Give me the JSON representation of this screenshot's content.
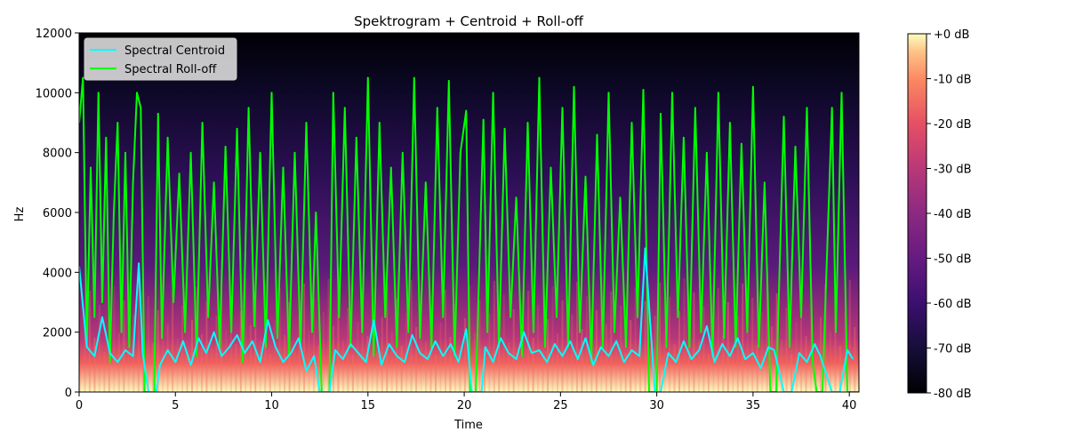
{
  "chart_data": {
    "type": "line",
    "title": "Spektrogram + Centroid + Roll-off",
    "xlabel": "Time",
    "ylabel": "Hz",
    "xlim": [
      0,
      40.5
    ],
    "ylim": [
      0,
      12000
    ],
    "x_ticks": [
      0,
      5,
      10,
      15,
      20,
      25,
      30,
      35,
      40
    ],
    "y_ticks": [
      0,
      2000,
      4000,
      6000,
      8000,
      10000,
      12000
    ],
    "legend_position": "top-left",
    "background": "spectrogram (magma colormap)",
    "series": [
      {
        "name": "Spectral Centroid",
        "color": "#00ffff",
        "x": [
          0,
          0.4,
          0.8,
          1.2,
          1.6,
          2.0,
          2.4,
          2.8,
          3.1,
          3.3,
          3.6,
          4.0,
          4.2,
          4.6,
          5.0,
          5.4,
          5.8,
          6.2,
          6.6,
          7.0,
          7.4,
          7.8,
          8.2,
          8.6,
          9.0,
          9.4,
          9.8,
          10.2,
          10.6,
          11.0,
          11.4,
          11.8,
          12.2,
          12.5,
          13.0,
          13.3,
          13.7,
          14.1,
          14.5,
          14.9,
          15.3,
          15.7,
          16.1,
          16.5,
          16.9,
          17.3,
          17.7,
          18.1,
          18.5,
          18.9,
          19.3,
          19.7,
          20.1,
          20.4,
          20.9,
          21.1,
          21.5,
          21.9,
          22.3,
          22.7,
          23.1,
          23.5,
          23.9,
          24.3,
          24.7,
          25.1,
          25.5,
          25.9,
          26.3,
          26.7,
          27.1,
          27.5,
          27.9,
          28.3,
          28.7,
          29.1,
          29.4,
          29.9,
          30.2,
          30.6,
          31.0,
          31.4,
          31.8,
          32.2,
          32.6,
          33.0,
          33.4,
          33.8,
          34.2,
          34.6,
          35.0,
          35.4,
          35.8,
          36.1,
          36.6,
          37.0,
          37.4,
          37.8,
          38.2,
          38.5,
          39.1,
          39.5,
          39.9,
          40.2
        ],
        "y": [
          4200,
          1500,
          1200,
          2500,
          1300,
          1000,
          1400,
          1200,
          4300,
          1300,
          0,
          0,
          900,
          1400,
          1000,
          1700,
          900,
          1800,
          1300,
          2000,
          1200,
          1500,
          1900,
          1300,
          1700,
          1000,
          2400,
          1500,
          1000,
          1300,
          1800,
          700,
          1200,
          0,
          0,
          1400,
          1100,
          1600,
          1300,
          1000,
          2400,
          900,
          1600,
          1200,
          1000,
          1900,
          1300,
          1100,
          1700,
          1200,
          1600,
          1000,
          2100,
          0,
          0,
          1500,
          1000,
          1800,
          1300,
          1100,
          2000,
          1300,
          1400,
          1000,
          1600,
          1200,
          1700,
          1100,
          1800,
          900,
          1500,
          1200,
          1700,
          1000,
          1400,
          1200,
          4800,
          0,
          0,
          1300,
          1000,
          1700,
          1100,
          1400,
          2200,
          1000,
          1600,
          1200,
          1800,
          1100,
          1300,
          800,
          1500,
          1400,
          0,
          0,
          1300,
          1000,
          1600,
          1200,
          0,
          0,
          1400,
          1100
        ]
      },
      {
        "name": "Spectral Roll-off",
        "color": "#00ff00",
        "x": [
          0,
          0.2,
          0.4,
          0.6,
          0.8,
          1.0,
          1.2,
          1.4,
          1.6,
          1.8,
          2.0,
          2.2,
          2.4,
          2.6,
          2.8,
          3.0,
          3.2,
          3.4,
          3.6,
          3.9,
          4.1,
          4.3,
          4.6,
          4.9,
          5.2,
          5.5,
          5.8,
          6.1,
          6.4,
          6.7,
          7.0,
          7.3,
          7.6,
          7.9,
          8.2,
          8.5,
          8.8,
          9.1,
          9.4,
          9.7,
          10.0,
          10.3,
          10.6,
          10.9,
          11.2,
          11.5,
          11.8,
          12.1,
          12.3,
          12.6,
          13.0,
          13.2,
          13.5,
          13.8,
          14.1,
          14.4,
          14.7,
          15.0,
          15.3,
          15.6,
          15.9,
          16.2,
          16.5,
          16.8,
          17.1,
          17.4,
          17.7,
          18.0,
          18.3,
          18.6,
          18.9,
          19.2,
          19.5,
          19.8,
          20.1,
          20.3,
          20.6,
          21.0,
          21.2,
          21.5,
          21.8,
          22.1,
          22.4,
          22.7,
          23.0,
          23.3,
          23.6,
          23.9,
          24.2,
          24.5,
          24.8,
          25.1,
          25.4,
          25.7,
          26.0,
          26.3,
          26.6,
          26.9,
          27.2,
          27.5,
          27.8,
          28.1,
          28.4,
          28.7,
          29.0,
          29.3,
          29.6,
          30.0,
          30.2,
          30.5,
          30.8,
          31.1,
          31.4,
          31.7,
          32.0,
          32.3,
          32.6,
          32.9,
          33.2,
          33.5,
          33.8,
          34.1,
          34.4,
          34.7,
          35.0,
          35.3,
          35.6,
          35.9,
          36.2,
          36.6,
          36.9,
          37.2,
          37.5,
          37.8,
          38.1,
          38.3,
          38.6,
          39.1,
          39.3,
          39.6,
          39.9,
          40.2,
          40.5
        ],
        "y": [
          9000,
          10500,
          1500,
          7500,
          2500,
          10000,
          3000,
          8500,
          1000,
          6000,
          9000,
          2000,
          8000,
          1500,
          7000,
          10000,
          9500,
          0,
          0,
          0,
          9300,
          1800,
          8500,
          3000,
          7300,
          2000,
          8000,
          1200,
          9000,
          2500,
          7000,
          1500,
          8200,
          2000,
          8800,
          1000,
          9500,
          2200,
          8000,
          1500,
          10000,
          1800,
          7500,
          1200,
          8000,
          1500,
          9000,
          2000,
          6000,
          0,
          0,
          10000,
          2500,
          9500,
          1500,
          8500,
          2000,
          10500,
          1200,
          9000,
          2500,
          7500,
          1500,
          8000,
          2000,
          10500,
          1800,
          7000,
          1500,
          9500,
          2500,
          10400,
          1200,
          8000,
          9400,
          0,
          0,
          9100,
          2000,
          10000,
          1500,
          8800,
          2500,
          6500,
          1200,
          9000,
          2000,
          10500,
          1500,
          7500,
          2500,
          9500,
          1500,
          10200,
          2000,
          7200,
          1000,
          8600,
          1500,
          10000,
          2000,
          6500,
          1500,
          9000,
          2500,
          10100,
          0,
          0,
          9300,
          1500,
          10000,
          2500,
          8500,
          1500,
          9500,
          2000,
          8000,
          1200,
          10000,
          1800,
          9000,
          1500,
          8300,
          2000,
          10200,
          1500,
          7000,
          0,
          0,
          9200,
          1500,
          8200,
          2500,
          9500,
          1000,
          0,
          0,
          9500,
          2000,
          10000,
          0,
          0,
          0
        ]
      }
    ],
    "colorbar": {
      "ticks": [
        "+0 dB",
        "-10 dB",
        "-20 dB",
        "-30 dB",
        "-40 dB",
        "-50 dB",
        "-60 dB",
        "-70 dB",
        "-80 dB"
      ],
      "colormap": [
        "#fcfdbf",
        "#fec287",
        "#fb8761",
        "#e55064",
        "#b73779",
        "#8c2981",
        "#641a80",
        "#3b0f70",
        "#150e37",
        "#000004"
      ]
    }
  }
}
